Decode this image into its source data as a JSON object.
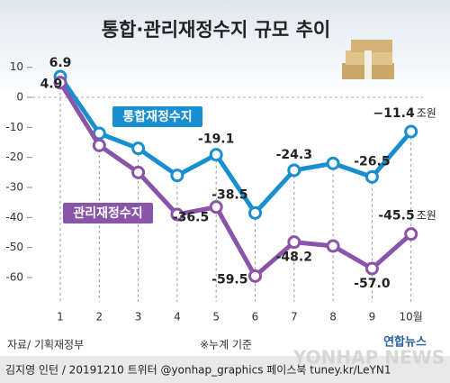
{
  "chart_data": {
    "type": "line",
    "title": "통합·관리재정수지 규모 추이",
    "categories": [
      "1",
      "2",
      "3",
      "4",
      "5",
      "6",
      "7",
      "8",
      "9",
      "10월"
    ],
    "series": [
      {
        "name": "통합재정수지",
        "color": "#1a8fd0",
        "values": [
          6.9,
          -12,
          -17,
          -26,
          -19.1,
          -38.5,
          -24.3,
          -22,
          -26.5,
          -11.4
        ],
        "value_labels": [
          "6.9",
          null,
          null,
          null,
          "-19.1",
          "-38.5",
          "-24.3",
          null,
          "-26.5",
          "−11.4"
        ]
      },
      {
        "name": "관리재정수지",
        "color": "#8a55a8",
        "values": [
          4.9,
          -16,
          -25,
          -39,
          -36.5,
          -59.5,
          -48.2,
          -49.5,
          -57.0,
          -45.5
        ],
        "value_labels": [
          "4.9",
          null,
          null,
          null,
          "-36.5",
          "-59.5",
          "-48.2",
          null,
          "-57.0",
          "-45.5"
        ]
      }
    ],
    "unit": "조원",
    "ylim": [
      -63,
      12
    ],
    "yticks": [
      10,
      0,
      -10,
      -20,
      -30,
      -40,
      -50,
      -60
    ],
    "source": "자료/ 기획재정부",
    "note": "※누계 기준",
    "logo": "연합뉴스",
    "watermark": "YONHAP NEWS",
    "credit": "김지영 인턴 / 20191210 트위터 @yonhap_graphics  페이스북 tuney.kr/LeYN1"
  }
}
